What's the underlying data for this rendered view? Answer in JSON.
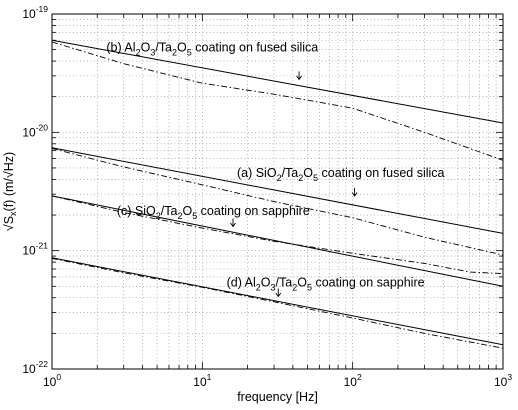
{
  "chart_data": {
    "type": "line",
    "xscale": "log",
    "yscale": "log",
    "xlim": [
      1,
      1000
    ],
    "ylim": [
      1e-22,
      1e-19
    ],
    "grid": true,
    "xlabel": "frequency [Hz]",
    "ylabel": "√S_x(f) (m/√Hz)",
    "ylabel_parts": {
      "root": "√S",
      "sub": "x",
      "rest": "(f) (m/√Hz)"
    },
    "x_ticks": [
      {
        "value": 1,
        "base": "10",
        "exp": "0"
      },
      {
        "value": 10,
        "base": "10",
        "exp": "1"
      },
      {
        "value": 100,
        "base": "10",
        "exp": "2"
      },
      {
        "value": 1000,
        "base": "10",
        "exp": "3"
      }
    ],
    "y_ticks": [
      {
        "value": 1e-22,
        "base": "10",
        "exp": "-22"
      },
      {
        "value": 1e-21,
        "base": "10",
        "exp": "-21"
      },
      {
        "value": 1e-20,
        "base": "10",
        "exp": "-20"
      },
      {
        "value": 1e-19,
        "base": "10",
        "exp": "-19"
      }
    ],
    "series": [
      {
        "id": "b",
        "label_parts": [
          [
            "(b) Al",
            ""
          ],
          [
            "2",
            "sub"
          ],
          [
            "O",
            ""
          ],
          [
            "3",
            "sub"
          ],
          [
            "/Ta",
            ""
          ],
          [
            "2",
            "sub"
          ],
          [
            "O",
            ""
          ],
          [
            "5",
            "sub"
          ],
          [
            " coating on fused silica",
            ""
          ]
        ],
        "label_anchor": [
          2.3,
          4.8e-20
        ],
        "arrow_at": [
          44,
          2.8e-20
        ],
        "solid": [
          [
            1,
            6e-20
          ],
          [
            1000,
            1.2e-20
          ]
        ],
        "dashdot": [
          [
            1,
            5.8e-20
          ],
          [
            3,
            3.8e-20
          ],
          [
            10,
            2.6e-20
          ],
          [
            30,
            2.1e-20
          ],
          [
            100,
            1.6e-20
          ],
          [
            300,
            1e-20
          ],
          [
            1000,
            5.8e-21
          ]
        ]
      },
      {
        "id": "a",
        "label_parts": [
          [
            "(a) SiO",
            ""
          ],
          [
            "2",
            "sub"
          ],
          [
            "/Ta",
            ""
          ],
          [
            "2",
            "sub"
          ],
          [
            "O",
            ""
          ],
          [
            "5",
            "sub"
          ],
          [
            " coating on fused silica",
            ""
          ]
        ],
        "label_anchor": [
          17,
          4.2e-21
        ],
        "arrow_at": [
          103,
          2.9e-21
        ],
        "solid": [
          [
            1,
            7.4e-21
          ],
          [
            1000,
            1.4e-21
          ]
        ],
        "dashdot": [
          [
            1,
            7.3e-21
          ],
          [
            3,
            5.1e-21
          ],
          [
            10,
            3.6e-21
          ],
          [
            30,
            2.6e-21
          ],
          [
            100,
            1.9e-21
          ],
          [
            300,
            1.3e-21
          ],
          [
            1000,
            9.2e-22
          ]
        ]
      },
      {
        "id": "c",
        "label_parts": [
          [
            "(c) SiO",
            ""
          ],
          [
            "2",
            "sub"
          ],
          [
            "/Ta",
            ""
          ],
          [
            "2",
            "sub"
          ],
          [
            "O",
            ""
          ],
          [
            "5",
            "sub"
          ],
          [
            " coating on sapphire",
            ""
          ]
        ],
        "label_anchor": [
          2.7,
          2e-21
        ],
        "arrow_at": [
          16,
          1.6e-21
        ],
        "solid": [
          [
            1,
            2.9e-21
          ],
          [
            1000,
            5e-22
          ]
        ],
        "dashdot": [
          [
            1,
            2.9e-21
          ],
          [
            3,
            2.1e-21
          ],
          [
            10,
            1.55e-21
          ],
          [
            30,
            1.2e-21
          ],
          [
            100,
            9.5e-22
          ],
          [
            300,
            7.8e-22
          ],
          [
            600,
            6.6e-22
          ],
          [
            1000,
            6.4e-22
          ]
        ]
      },
      {
        "id": "d",
        "label_parts": [
          [
            "(d) Al",
            ""
          ],
          [
            "2",
            "sub"
          ],
          [
            "O",
            ""
          ],
          [
            "3",
            "sub"
          ],
          [
            "/Ta",
            ""
          ],
          [
            "2",
            "sub"
          ],
          [
            "O",
            ""
          ],
          [
            "5",
            "sub"
          ],
          [
            " coating on sapphire",
            ""
          ]
        ],
        "label_anchor": [
          14.5,
          5e-22
        ],
        "arrow_at": [
          32,
          4.1e-22
        ],
        "solid": [
          [
            1,
            8.7e-22
          ],
          [
            1000,
            1.6e-22
          ]
        ],
        "dashdot": [
          [
            1,
            8.6e-22
          ],
          [
            3,
            6.5e-22
          ],
          [
            10,
            4.9e-22
          ],
          [
            30,
            3.7e-22
          ],
          [
            100,
            2.7e-22
          ],
          [
            300,
            2e-22
          ],
          [
            1000,
            1.5e-22
          ]
        ]
      }
    ]
  }
}
